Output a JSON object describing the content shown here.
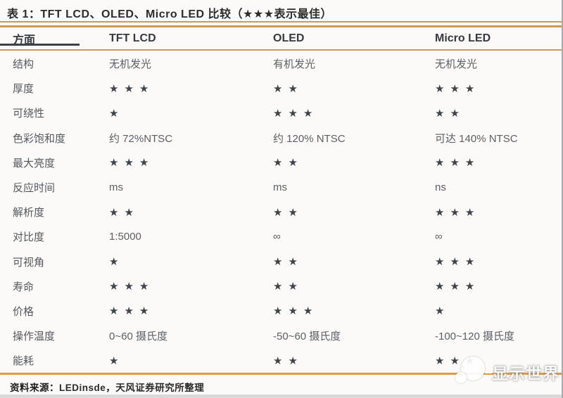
{
  "title": "表 1：TFT LCD、OLED、Micro LED 比较（★★★表示最佳）",
  "table": {
    "columns": [
      "方面",
      "TFT LCD",
      "OLED",
      "Micro LED"
    ],
    "rows": [
      {
        "label": "结构",
        "tft": "无机发光",
        "oled": "有机发光",
        "micro": "无机发光"
      },
      {
        "label": "厚度",
        "tft": "★★★",
        "oled": "★★",
        "micro": "★★★"
      },
      {
        "label": "可绕性",
        "tft": "★",
        "oled": "★★★",
        "micro": "★★"
      },
      {
        "label": "色彩饱和度",
        "tft": "约 72%NTSC",
        "oled": "约 120% NTSC",
        "micro": "可达 140% NTSC"
      },
      {
        "label": "最大亮度",
        "tft": "★★★",
        "oled": "★★",
        "micro": "★★★"
      },
      {
        "label": "反应时间",
        "tft": "ms",
        "oled": "ms",
        "micro": "ns"
      },
      {
        "label": "解析度",
        "tft": "★★",
        "oled": "★★",
        "micro": "★★★"
      },
      {
        "label": "对比度",
        "tft": "1:5000",
        "oled": "∞",
        "micro": "∞"
      },
      {
        "label": "可视角",
        "tft": "★",
        "oled": "★★",
        "micro": "★★★"
      },
      {
        "label": "寿命",
        "tft": "★★★",
        "oled": "★★",
        "micro": "★★★"
      },
      {
        "label": "价格",
        "tft": "★★★",
        "oled": "★★★",
        "micro": "★"
      },
      {
        "label": "操作温度",
        "tft": "0~60 摄氏度",
        "oled": "-50~60 摄氏度",
        "micro": "-100~120 摄氏度"
      },
      {
        "label": "能耗",
        "tft": "★",
        "oled": "★★",
        "micro": "★★★"
      }
    ]
  },
  "footer": {
    "source_label": "资料来源：",
    "source_text": "LEDinsde，天风证券研究所整理"
  },
  "watermark": {
    "name": "显示世界"
  },
  "colors": {
    "accent_line": "#D2975A",
    "bottom_line": "#DD9A4B",
    "header_dark_underline": "#3C4047",
    "star": "#3F434A",
    "title_text": "#2F2C28",
    "header_text": "#36393F",
    "body_text": "#5C6066",
    "background": "#FBFAF8"
  }
}
